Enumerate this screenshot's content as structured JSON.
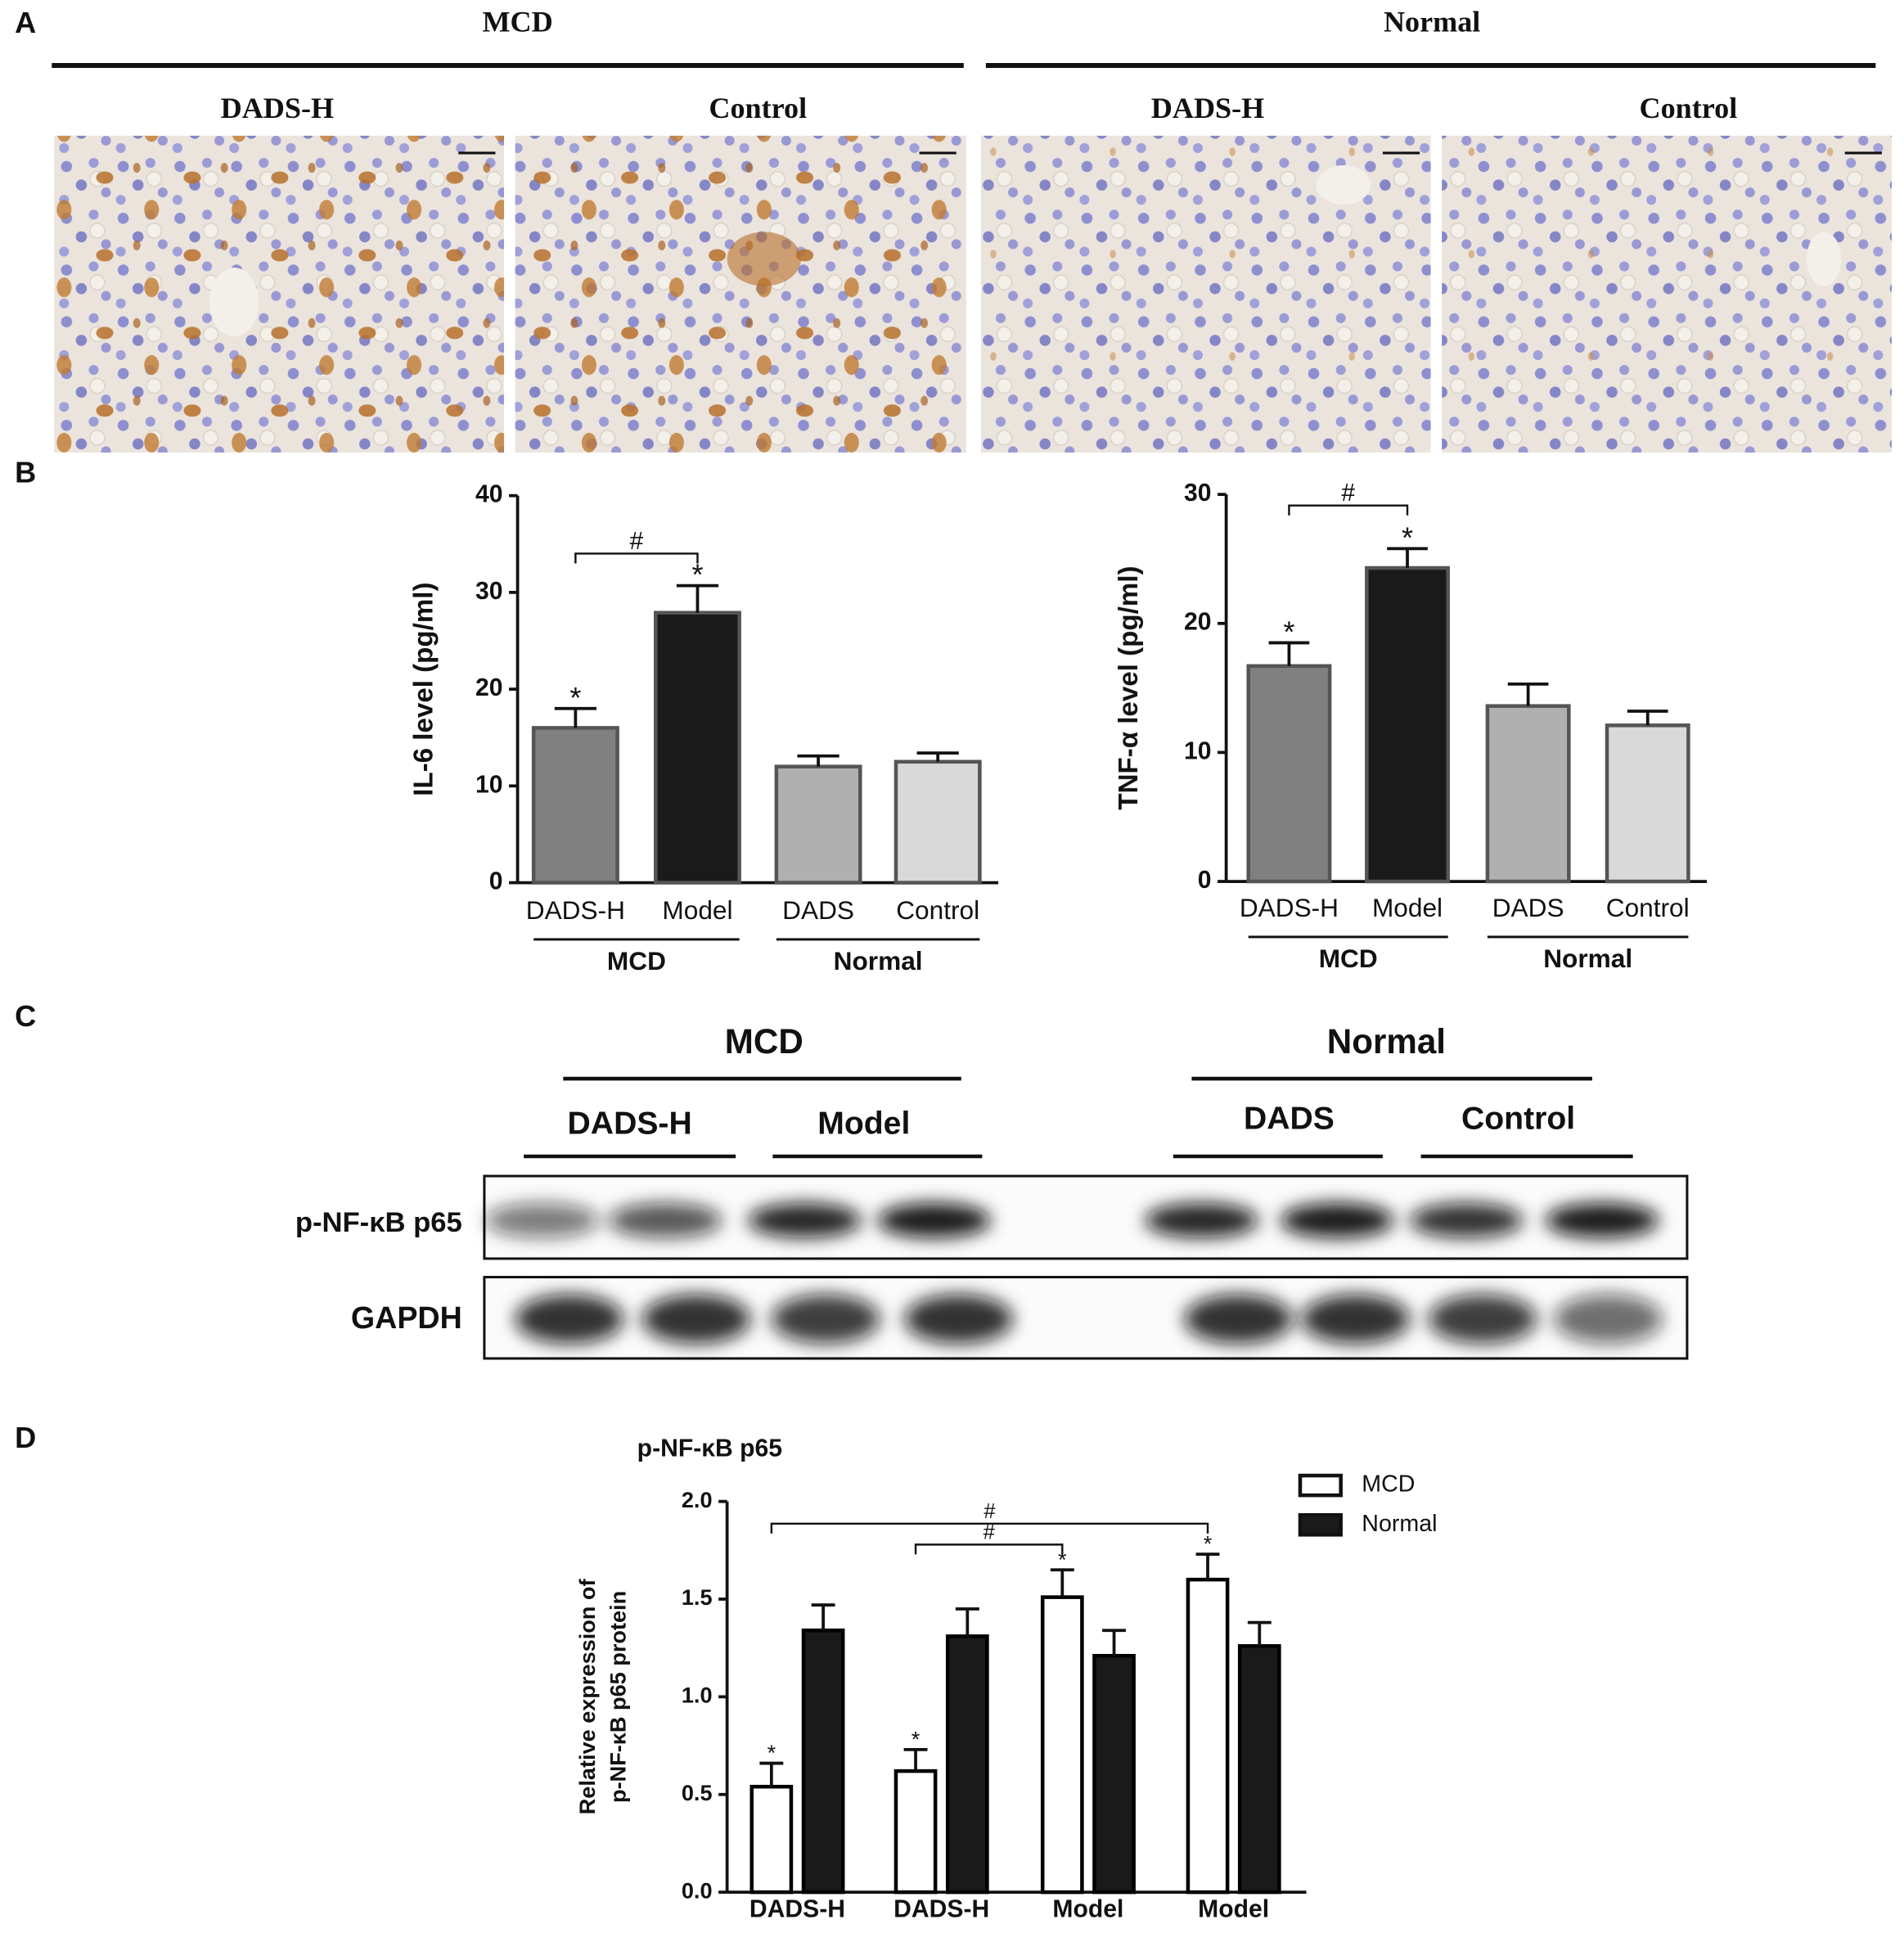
{
  "panel_labels": [
    "A",
    "B",
    "C",
    "D"
  ],
  "histology": {
    "groups": [
      "MCD",
      "Normal"
    ],
    "columns": [
      "DADS-H",
      "Control",
      "DADS-H",
      "Control"
    ]
  },
  "blot": {
    "groups": [
      "MCD",
      "Normal"
    ],
    "lanes": [
      "DADS-H",
      "Model",
      "DADS",
      "Control"
    ],
    "rows": [
      "p-NF-κB p65",
      "GAPDH"
    ]
  },
  "chart_data": [
    {
      "type": "bar",
      "ylabel": "IL-6 level (pg/ml)",
      "categories": [
        "DADS-H",
        "Model",
        "DADS",
        "Control"
      ],
      "values": [
        16.0,
        27.9,
        12.0,
        12.5
      ],
      "errors": [
        2.0,
        2.8,
        1.1,
        0.9
      ],
      "colors": [
        "#808080",
        "#1a1a1a",
        "#b0b0b0",
        "#d9d9d9"
      ],
      "star_labels": [
        "*",
        "*",
        null,
        null
      ],
      "brackets": [
        {
          "label": "#",
          "span": [
            0,
            1
          ]
        }
      ],
      "groups": [
        {
          "label": "MCD",
          "span": [
            0,
            1
          ]
        },
        {
          "label": "Normal",
          "span": [
            2,
            3
          ]
        }
      ],
      "ylim": [
        0,
        40
      ],
      "yticks": [
        0,
        10,
        20,
        30,
        40
      ]
    },
    {
      "type": "bar",
      "ylabel": "TNF-α  level (pg/ml)",
      "categories": [
        "DADS-H",
        "Model",
        "DADS",
        "Control"
      ],
      "values": [
        16.7,
        24.3,
        13.6,
        12.1
      ],
      "errors": [
        1.8,
        1.5,
        1.7,
        1.1
      ],
      "colors": [
        "#808080",
        "#1a1a1a",
        "#b0b0b0",
        "#d9d9d9"
      ],
      "star_labels": [
        "*",
        "*",
        null,
        null
      ],
      "brackets": [
        {
          "label": "#",
          "span": [
            0,
            1
          ]
        }
      ],
      "groups": [
        {
          "label": "MCD",
          "span": [
            0,
            1
          ]
        },
        {
          "label": "Normal",
          "span": [
            2,
            3
          ]
        }
      ],
      "ylim": [
        0,
        30
      ],
      "yticks": [
        0,
        10,
        20,
        30
      ]
    },
    {
      "type": "grouped_bar",
      "title": "p-NF-κB p65",
      "ylabel": [
        "Relative expression of",
        "p-NF-κB p65 protein"
      ],
      "categories": [
        "DADS-H",
        "DADS-H",
        "Model",
        "Model"
      ],
      "series": [
        {
          "name": "MCD",
          "color": "#ffffff",
          "values": [
            0.54,
            0.62,
            1.51,
            1.6
          ],
          "errors": [
            0.12,
            0.11,
            0.14,
            0.13
          ],
          "star_labels": [
            "*",
            "*",
            "*",
            "*"
          ]
        },
        {
          "name": "Normal",
          "color": "#1a1a1a",
          "values": [
            1.34,
            1.31,
            1.21,
            1.26
          ],
          "errors": [
            0.13,
            0.14,
            0.13,
            0.12
          ]
        }
      ],
      "brackets": [
        {
          "label": "#",
          "span": [
            0,
            3
          ]
        },
        {
          "label": "#",
          "span": [
            1,
            2
          ]
        }
      ],
      "ylim": [
        0,
        2
      ],
      "yticks": [
        {
          "value": 0,
          "label": "0.0"
        },
        0.5,
        {
          "value": 1,
          "label": "1.0"
        },
        1.5,
        {
          "value": 2,
          "label": "2.0"
        }
      ],
      "legend": "upper right"
    }
  ]
}
